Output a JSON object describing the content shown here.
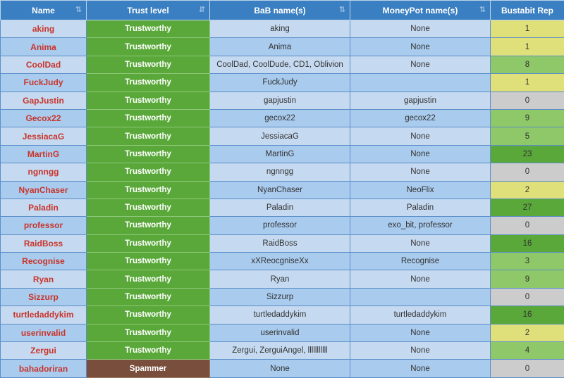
{
  "table": {
    "headers": [
      "Name",
      "Trust level",
      "BaB name(s)",
      "MoneyPot name(s)",
      "Bustabit Rep"
    ],
    "rows": [
      {
        "name": "aking",
        "trust": "Trustworthy",
        "bab": "aking",
        "moneypot": "None",
        "rep": "1"
      },
      {
        "name": "Anima",
        "trust": "Trustworthy",
        "bab": "Anima",
        "moneypot": "None",
        "rep": "1"
      },
      {
        "name": "CoolDad",
        "trust": "Trustworthy",
        "bab": "CoolDad, CoolDude, CD1, Oblivion",
        "moneypot": "None",
        "rep": "8"
      },
      {
        "name": "FuckJudy",
        "trust": "Trustworthy",
        "bab": "FuckJudy",
        "moneypot": "",
        "rep": "1"
      },
      {
        "name": "GapJustin",
        "trust": "Trustworthy",
        "bab": "gapjustin",
        "moneypot": "gapjustin",
        "rep": "0"
      },
      {
        "name": "Gecox22",
        "trust": "Trustworthy",
        "bab": "gecox22",
        "moneypot": "gecox22",
        "rep": "9"
      },
      {
        "name": "JessiacaG",
        "trust": "Trustworthy",
        "bab": "JessiacaG",
        "moneypot": "None",
        "rep": "5"
      },
      {
        "name": "MartinG",
        "trust": "Trustworthy",
        "bab": "MartinG",
        "moneypot": "None",
        "rep": "23"
      },
      {
        "name": "ngnngg",
        "trust": "Trustworthy",
        "bab": "ngnngg",
        "moneypot": "None",
        "rep": "0"
      },
      {
        "name": "NyanChaser",
        "trust": "Trustworthy",
        "bab": "NyanChaser",
        "moneypot": "NeoFlix",
        "rep": "2"
      },
      {
        "name": "Paladin",
        "trust": "Trustworthy",
        "bab": "Paladin",
        "moneypot": "Paladin",
        "rep": "27"
      },
      {
        "name": "professor",
        "trust": "Trustworthy",
        "bab": "professor",
        "moneypot": "exo_bit, professor",
        "rep": "0"
      },
      {
        "name": "RaidBoss",
        "trust": "Trustworthy",
        "bab": "RaidBoss",
        "moneypot": "None",
        "rep": "16"
      },
      {
        "name": "Recognise",
        "trust": "Trustworthy",
        "bab": "xXReocgniseXx",
        "moneypot": "Recognise",
        "rep": "3"
      },
      {
        "name": "Ryan",
        "trust": "Trustworthy",
        "bab": "Ryan",
        "moneypot": "None",
        "rep": "9"
      },
      {
        "name": "Sizzurp",
        "trust": "Trustworthy",
        "bab": "Sizzurp",
        "moneypot": "",
        "rep": "0"
      },
      {
        "name": "turtledaddykim",
        "trust": "Trustworthy",
        "bab": "turtledaddykim",
        "moneypot": "turtledaddykim",
        "rep": "16"
      },
      {
        "name": "userinvalid",
        "trust": "Trustworthy",
        "bab": "userinvalid",
        "moneypot": "None",
        "rep": "2"
      },
      {
        "name": "Zergui",
        "trust": "Trustworthy",
        "bab": "Zergui, ZerguiAngel, lllllllllll",
        "moneypot": "None",
        "rep": "4"
      },
      {
        "name": "bahadoriran",
        "trust": "Spammer",
        "bab": "None",
        "moneypot": "None",
        "rep": "0"
      }
    ]
  },
  "colors": {
    "header_bg": "#3a7fc1",
    "name_text": "#c9352b",
    "trustworthy_bg": "#5aa83a",
    "spammer_bg": "#7a4e3c",
    "rep_low": "#dfe07a",
    "rep_mid": "#8fc868",
    "rep_high": "#5aa83a",
    "rep_zero": "#cccccc"
  }
}
